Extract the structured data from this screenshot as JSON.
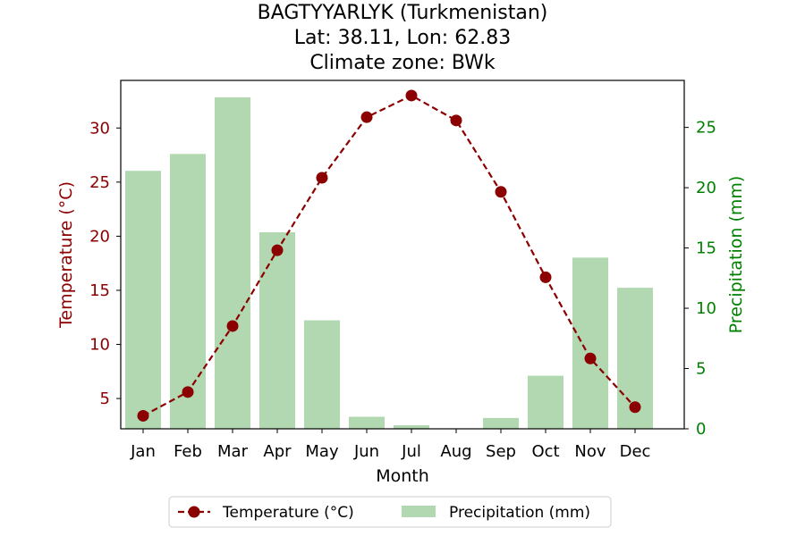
{
  "chart_data": {
    "type": "bar+line",
    "title_lines": [
      "BAGTYYARLYK (Turkmenistan)",
      "Lat: 38.11, Lon: 62.83",
      "Climate zone: BWk"
    ],
    "xlabel": "Month",
    "ylabel_left": "Temperature (°C)",
    "ylabel_right": "Precipitation (mm)",
    "categories": [
      "Jan",
      "Feb",
      "Mar",
      "Apr",
      "May",
      "Jun",
      "Jul",
      "Aug",
      "Sep",
      "Oct",
      "Nov",
      "Dec"
    ],
    "temperature": {
      "name": "Temperature (°C)",
      "values": [
        3.4,
        5.6,
        11.7,
        18.7,
        25.4,
        31.0,
        33.0,
        30.7,
        24.1,
        16.2,
        8.7,
        4.2
      ],
      "ylim": [
        2.2,
        34.4
      ],
      "ticks": [
        5,
        10,
        15,
        20,
        25,
        30
      ],
      "color": "#8b0000"
    },
    "precipitation": {
      "name": "Precipitation (mm)",
      "values": [
        21.4,
        22.8,
        27.5,
        16.3,
        9.0,
        1.0,
        0.3,
        0.0,
        0.9,
        4.4,
        14.2,
        11.7
      ],
      "ylim": [
        0,
        28.9
      ],
      "ticks": [
        0,
        5,
        10,
        15,
        20,
        25
      ],
      "color": "#b2d8b2",
      "axis_color": "#008000"
    },
    "legend_position": "bottom-center"
  }
}
